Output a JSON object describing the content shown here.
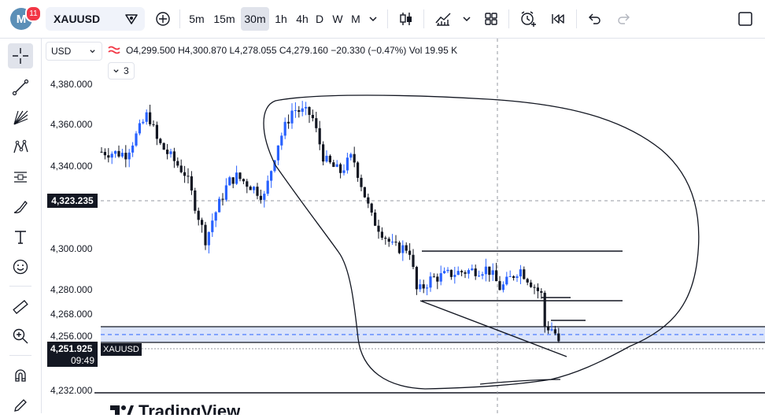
{
  "topbar": {
    "avatar_letter": "M",
    "notification_count": "11",
    "symbol": "XAUUSD",
    "intervals": [
      "5m",
      "15m",
      "30m",
      "1h",
      "4h",
      "D",
      "W",
      "M"
    ],
    "active_interval": "30m"
  },
  "legend": {
    "currency": "USD",
    "open": "O4,299.500",
    "high": "H4,300.870",
    "low": "L4,278.055",
    "close": "C4,279.160",
    "change": "−20.330 (−0.47%)",
    "volume": "Vol 19.95 K",
    "collapsed_count": "3"
  },
  "price_axis": {
    "labels": [
      "4,380.000",
      "4,360.000",
      "4,340.000",
      "4,300.000",
      "4,280.000",
      "4,268.000",
      "4,256.000",
      "4,232.000"
    ],
    "crosshair_price": "4,323.235",
    "current_price": "4,251.925",
    "countdown": "09:49",
    "series_tag": "XAUUSD"
  },
  "watermark": "TradingView",
  "colors": {
    "up": "#2962ff",
    "down": "#131722",
    "accent": "#2962ff",
    "zone_fill": "#dbe4fb",
    "badge": "#f23645"
  }
}
